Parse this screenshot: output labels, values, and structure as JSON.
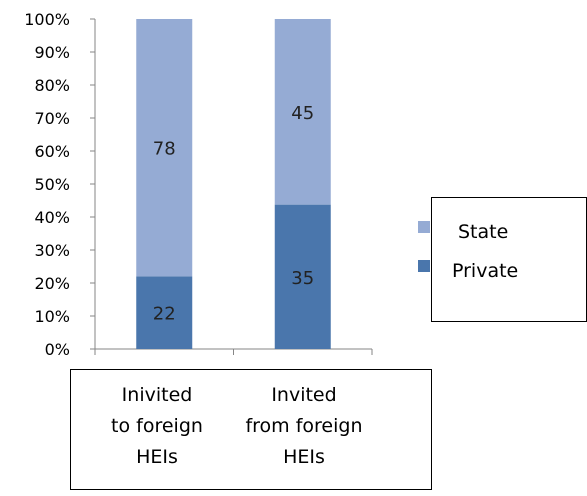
{
  "chart_data": {
    "type": "bar",
    "stacked": true,
    "percent_stacked": true,
    "categories": [
      [
        "Inivited",
        "to foreign",
        "HEIs"
      ],
      [
        "Invited",
        "from foreign",
        "HEIs"
      ]
    ],
    "series": [
      {
        "name": "Private",
        "values": [
          22,
          35
        ],
        "color": "#4a76ac"
      },
      {
        "name": "State",
        "values": [
          78,
          45
        ],
        "color": "#95abd4"
      }
    ],
    "data_labels": [
      [
        "22",
        "35"
      ],
      [
        "78",
        "45"
      ]
    ],
    "y_ticks": [
      "0%",
      "10%",
      "20%",
      "30%",
      "40%",
      "50%",
      "60%",
      "70%",
      "80%",
      "90%",
      "100%"
    ],
    "ylim": [
      0,
      100
    ],
    "grid": false,
    "legend": {
      "position": "right",
      "entries": [
        "State",
        "Private"
      ]
    }
  }
}
